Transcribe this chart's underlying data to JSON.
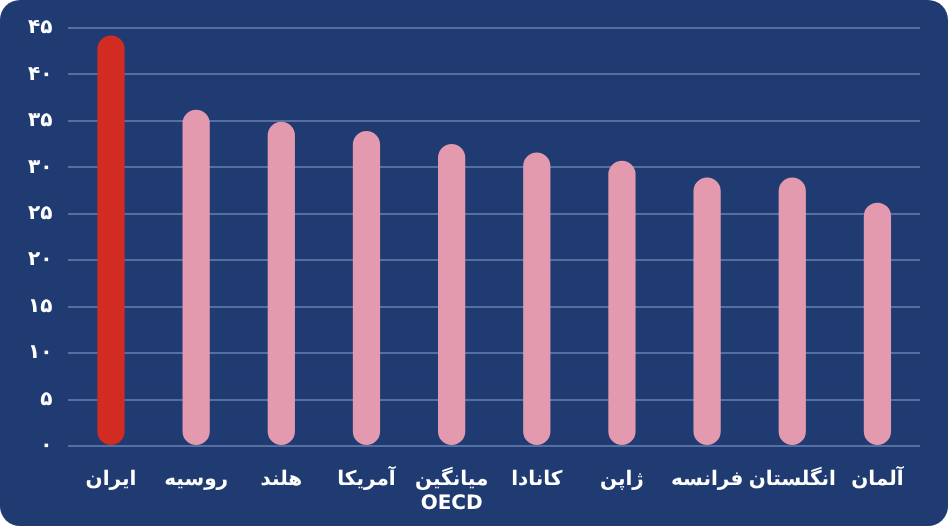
{
  "chart_data": {
    "type": "bar",
    "categories": [
      "ایران",
      "روسیه",
      "هلند",
      "آمریکا",
      "میانگین OECD",
      "کانادا",
      "ژاپن",
      "فرانسه",
      "انگلستان",
      "آلمان"
    ],
    "values": [
      44.2,
      36.2,
      34.9,
      33.9,
      32.5,
      31.6,
      30.7,
      28.9,
      28.9,
      26.2
    ],
    "colors": [
      "#d12b22",
      "#e39aae",
      "#e39aae",
      "#e39aae",
      "#e39aae",
      "#e39aae",
      "#e39aae",
      "#e39aae",
      "#e39aae",
      "#e39aae"
    ],
    "ylim": [
      0,
      45
    ],
    "yticks": [
      {
        "value": 0,
        "label": "۰"
      },
      {
        "value": 5,
        "label": "۵"
      },
      {
        "value": 10,
        "label": "۱۰"
      },
      {
        "value": 15,
        "label": "۱۵"
      },
      {
        "value": 20,
        "label": "۲۰"
      },
      {
        "value": 25,
        "label": "۲۵"
      },
      {
        "value": 30,
        "label": "۳۰"
      },
      {
        "value": 35,
        "label": "۳۵"
      },
      {
        "value": 40,
        "label": "۴۰"
      },
      {
        "value": 45,
        "label": "۴۵"
      }
    ],
    "grid": "y",
    "legend": false
  }
}
